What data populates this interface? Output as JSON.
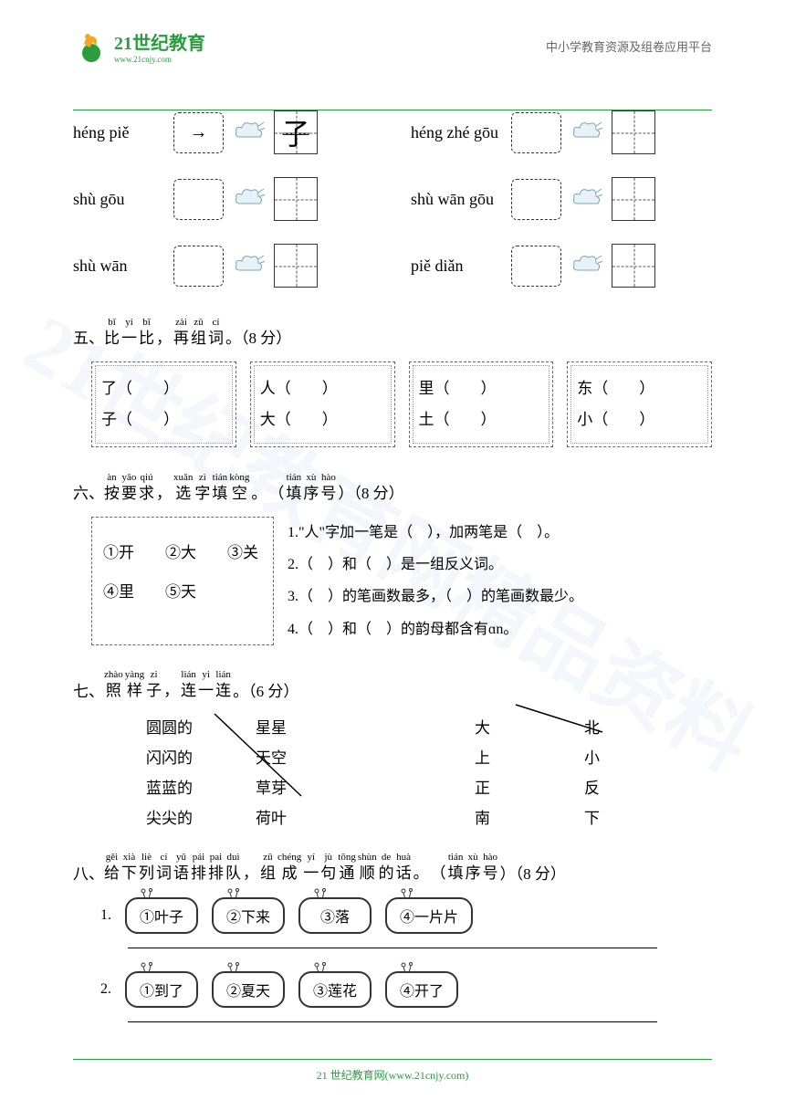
{
  "header": {
    "logo_main": "21世纪教育",
    "logo_sub": "www.21cnjy.com",
    "right_text": "中小学教育资源及组卷应用平台"
  },
  "footer": {
    "text": "21 世纪教育网(www.21cnjy.com)"
  },
  "watermark": "21世纪教育网精品资料",
  "strokes": [
    {
      "label": "héng piě",
      "has_char": true,
      "char": "子",
      "stroke": "→"
    },
    {
      "label": "héng zhé gōu",
      "has_char": false
    },
    {
      "label": "shù gōu",
      "has_char": false
    },
    {
      "label": "shù wān gōu",
      "has_char": false
    },
    {
      "label": "shù wān",
      "has_char": false
    },
    {
      "label": "piě diǎn",
      "has_char": false
    }
  ],
  "q5": {
    "num": "五、",
    "title_pinyin": [
      "bǐ",
      "yi",
      "bǐ",
      "",
      "zài",
      "zǔ",
      "cí"
    ],
    "title_hanzi": [
      "比",
      "一",
      "比",
      "，",
      "再",
      "组",
      "词"
    ],
    "score": "。（8 分）",
    "items": [
      {
        "a": "了（　　）",
        "b": "子（　　）"
      },
      {
        "a": "人（　　）",
        "b": "大（　　）"
      },
      {
        "a": "里（　　）",
        "b": "土（　　）"
      },
      {
        "a": "东（　　）",
        "b": "小（　　）"
      }
    ]
  },
  "q6": {
    "num": "六、",
    "title_pinyin": [
      "àn",
      "yāo",
      "qiú",
      "",
      "xuǎn",
      "zì",
      "tián",
      "kòng",
      "",
      "",
      "tián",
      "xù",
      "hào"
    ],
    "title_hanzi": [
      "按",
      "要",
      "求",
      "，",
      "选",
      "字",
      "填",
      "空",
      "。",
      "（",
      "填",
      "序",
      "号"
    ],
    "score": "）（8 分）",
    "options_line1": "①开　　②大　　③关",
    "options_line2": "④里　　⑤天",
    "lines": [
      "1.\"人\"字加一笔是（　），加两笔是（　）。",
      "2.（　）和（　）是一组反义词。",
      "3.（　）的笔画数最多，（　）的笔画数最少。",
      "4.（　）和（　）的韵母都含有ɑn。"
    ]
  },
  "q7": {
    "num": "七、",
    "title_pinyin": [
      "zhào",
      "yàng",
      "zi",
      "",
      "lián",
      "yi",
      "lián"
    ],
    "title_hanzi": [
      "照",
      "样",
      "子",
      "，",
      "连",
      "一",
      "连"
    ],
    "score": "。（6 分）",
    "left_col1": [
      "圆圆的",
      "闪闪的",
      "蓝蓝的",
      "尖尖的"
    ],
    "left_col2": [
      "星星",
      "天空",
      "草芽",
      "荷叶"
    ],
    "right_col1": [
      "大",
      "上",
      "正",
      "南"
    ],
    "right_col2": [
      "北",
      "小",
      "反",
      "下"
    ]
  },
  "q8": {
    "num": "八、",
    "title_pinyin": [
      "gěi",
      "xià",
      "liè",
      "cí",
      "yǔ",
      "pái",
      "pai",
      "duì",
      "",
      "zǔ",
      "chéng",
      "yí",
      "jù",
      "tōng",
      "shùn",
      "de",
      "huà",
      "",
      "",
      "tián",
      "xù",
      "hào"
    ],
    "title_hanzi": [
      "给",
      "下",
      "列",
      "词",
      "语",
      "排",
      "排",
      "队",
      "，",
      "组",
      "成",
      "一",
      "句",
      "通",
      "顺",
      "的",
      "话",
      "。",
      "（",
      "填",
      "序",
      "号"
    ],
    "score": "）（8 分）",
    "rows": [
      {
        "num": "1.",
        "items": [
          "①叶子",
          "②下来",
          "③落",
          "④一片片"
        ]
      },
      {
        "num": "2.",
        "items": [
          "①到了",
          "②夏天",
          "③莲花",
          "④开了"
        ]
      }
    ]
  },
  "colors": {
    "green": "#2a9d3f",
    "wm": "rgba(100,150,200,0.08)"
  }
}
